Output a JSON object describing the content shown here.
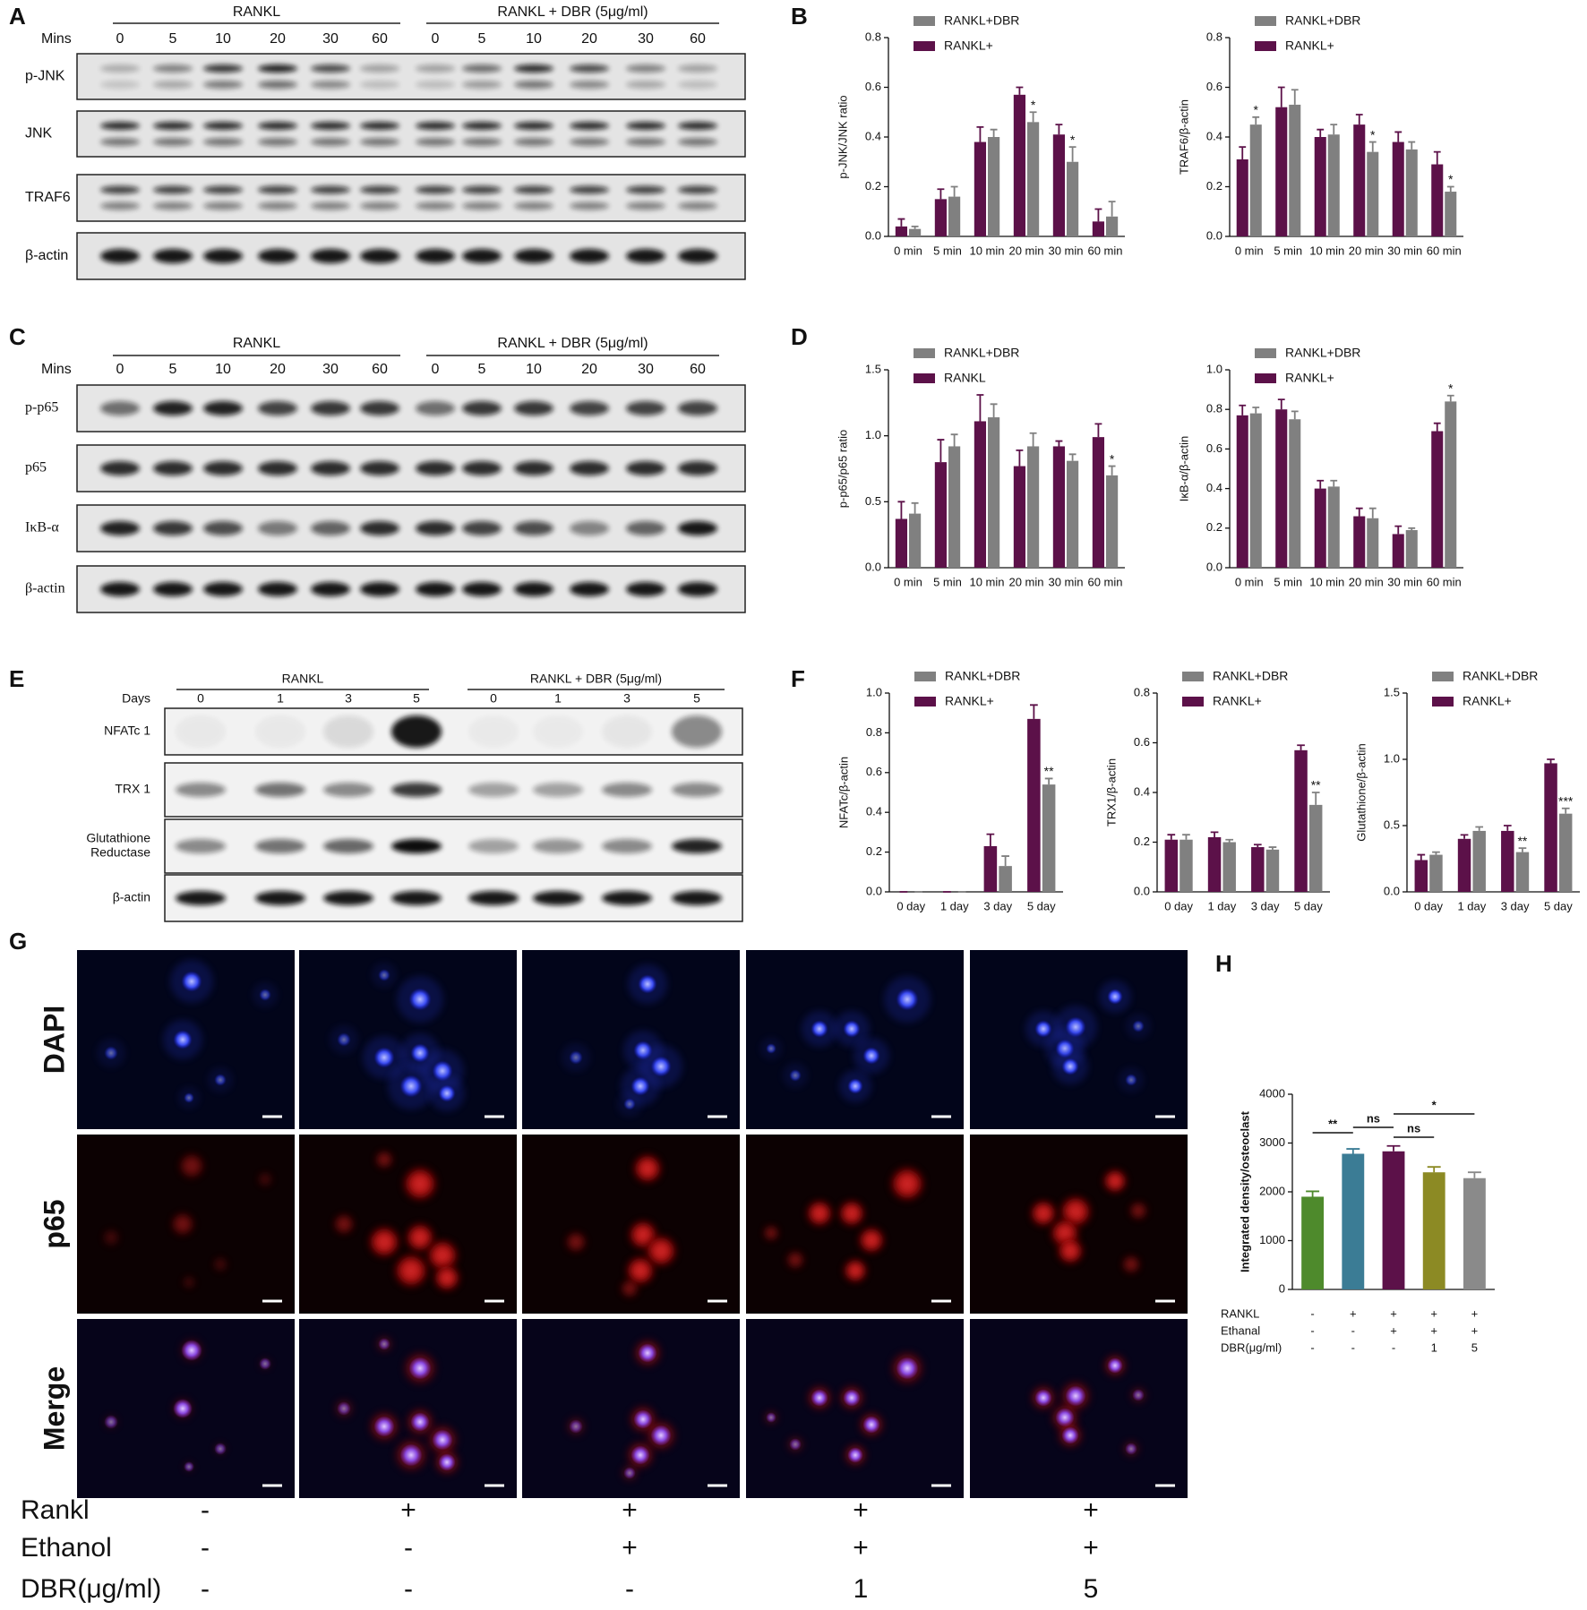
{
  "panels": [
    "A",
    "B",
    "C",
    "D",
    "E",
    "F",
    "G",
    "H"
  ],
  "blots": [
    {
      "groups": [
        "RANKL",
        "RANKL + DBR (5μg/ml)"
      ],
      "lane_title": "Mins",
      "lanes": [
        "0",
        "5",
        "10",
        "20",
        "30",
        "60",
        "0",
        "5",
        "10",
        "20",
        "30",
        "60"
      ],
      "rows": [
        [
          "p-JNK"
        ],
        [
          "JNK"
        ],
        [
          "TRAF6"
        ],
        [
          "β-actin"
        ]
      ]
    },
    {
      "groups": [
        "RANKL",
        "RANKL + DBR (5μg/ml)"
      ],
      "lane_title": "Mins",
      "lanes": [
        "0",
        "5",
        "10",
        "20",
        "30",
        "60",
        "0",
        "5",
        "10",
        "20",
        "30",
        "60"
      ],
      "rows": [
        [
          "p-p65"
        ],
        [
          "p65"
        ],
        [
          "IκB-α"
        ],
        [
          "β-actin"
        ]
      ]
    },
    {
      "groups": [
        "RANKL",
        "RANKL + DBR (5μg/ml)"
      ],
      "lane_title": "Days",
      "lanes": [
        "0",
        "1",
        "3",
        "5",
        "0",
        "1",
        "3",
        "5"
      ],
      "rows": [
        [
          "NFATc 1"
        ],
        [
          "TRX 1"
        ],
        [
          "Glutathione",
          "Reductase"
        ],
        [
          "β-actin"
        ]
      ]
    }
  ],
  "chart_data": [
    {
      "type": "bar",
      "y_label": "p-JNK/JNK ratio",
      "categories": [
        "0 min",
        "5 min",
        "10 min",
        "20 min",
        "30 min",
        "60 min"
      ],
      "series": [
        {
          "name": "RANKL+DBR",
          "color": "#808080",
          "values": [
            0.03,
            0.16,
            0.4,
            0.46,
            0.3,
            0.08
          ],
          "errors": [
            0.01,
            0.04,
            0.03,
            0.04,
            0.06,
            0.06
          ],
          "stars": [
            null,
            null,
            null,
            "*",
            "*",
            null
          ]
        },
        {
          "name": "RANKL+",
          "color": "#5c1149",
          "values": [
            0.04,
            0.15,
            0.38,
            0.57,
            0.41,
            0.06
          ],
          "errors": [
            0.03,
            0.04,
            0.06,
            0.03,
            0.04,
            0.05
          ]
        }
      ],
      "ylim": [
        0,
        0.8
      ],
      "yticks": [
        {
          "value": 0,
          "label": "0.0"
        },
        0.2,
        0.4,
        0.6,
        0.8
      ]
    },
    {
      "type": "bar",
      "y_label": "TRAF6/β-actin",
      "categories": [
        "0 min",
        "5 min",
        "10 min",
        "20 min",
        "30 min",
        "60 min"
      ],
      "series": [
        {
          "name": "RANKL+DBR",
          "color": "#808080",
          "values": [
            0.45,
            0.53,
            0.41,
            0.34,
            0.35,
            0.18
          ],
          "errors": [
            0.03,
            0.06,
            0.04,
            0.04,
            0.03,
            0.02
          ],
          "stars": [
            "*",
            null,
            null,
            "*",
            null,
            "*"
          ]
        },
        {
          "name": "RANKL+",
          "color": "#5c1149",
          "values": [
            0.31,
            0.52,
            0.4,
            0.45,
            0.38,
            0.29
          ],
          "errors": [
            0.05,
            0.08,
            0.03,
            0.04,
            0.04,
            0.05
          ]
        }
      ],
      "ylim": [
        0,
        0.8
      ],
      "yticks": [
        {
          "value": 0,
          "label": "0.0"
        },
        0.2,
        0.4,
        0.6,
        0.8
      ]
    },
    {
      "type": "bar",
      "y_label": "p-p65/p65 ratio",
      "categories": [
        "0 min",
        "5 min",
        "10 min",
        "20 min",
        "30 min",
        "60 min"
      ],
      "series": [
        {
          "name": "RANKL+DBR",
          "color": "#808080",
          "values": [
            0.41,
            0.92,
            1.14,
            0.92,
            0.81,
            0.7
          ],
          "errors": [
            0.08,
            0.09,
            0.1,
            0.1,
            0.05,
            0.07
          ],
          "stars": [
            null,
            null,
            null,
            null,
            null,
            "*"
          ]
        },
        {
          "name": "RANKL",
          "color": "#5c1149",
          "values": [
            0.37,
            0.8,
            1.11,
            0.77,
            0.92,
            0.99
          ],
          "errors": [
            0.13,
            0.17,
            0.2,
            0.12,
            0.04,
            0.1
          ]
        }
      ],
      "ylim": [
        0,
        1.5
      ],
      "yticks": [
        {
          "value": 0,
          "label": "0.0"
        },
        0.5,
        {
          "value": 1,
          "label": "1.0"
        },
        1.5
      ]
    },
    {
      "type": "bar",
      "y_label": "IκB-α/β-actin",
      "categories": [
        "0 min",
        "5 min",
        "10 min",
        "20 min",
        "30 min",
        "60 min"
      ],
      "series": [
        {
          "name": "RANKL+DBR",
          "color": "#808080",
          "values": [
            0.78,
            0.75,
            0.41,
            0.25,
            0.19,
            0.84
          ],
          "errors": [
            0.03,
            0.04,
            0.03,
            0.05,
            0.01,
            0.03
          ],
          "stars": [
            null,
            null,
            null,
            null,
            null,
            "*"
          ]
        },
        {
          "name": "RANKL+",
          "color": "#5c1149",
          "values": [
            0.77,
            0.8,
            0.4,
            0.26,
            0.17,
            0.69
          ],
          "errors": [
            0.05,
            0.05,
            0.04,
            0.04,
            0.04,
            0.04
          ]
        }
      ],
      "ylim": [
        0,
        1
      ],
      "yticks": [
        {
          "value": 0,
          "label": "0.0"
        },
        0.2,
        0.4,
        0.6,
        0.8,
        {
          "value": 1,
          "label": "1.0"
        }
      ]
    },
    {
      "type": "bar",
      "y_label": "NFATc/β-actin",
      "categories": [
        "0 day",
        "1 day",
        "3 day",
        "5 day"
      ],
      "series": [
        {
          "name": "RANKL+DBR",
          "color": "#808080",
          "values": [
            0,
            0,
            0.13,
            0.54
          ],
          "errors": [
            0,
            0,
            0.05,
            0.03
          ],
          "stars": [
            null,
            null,
            null,
            "**"
          ]
        },
        {
          "name": "RANKL+",
          "color": "#5c1149",
          "values": [
            0,
            0,
            0.23,
            0.87
          ],
          "errors": [
            0,
            0,
            0.06,
            0.07
          ]
        }
      ],
      "ylim": [
        0,
        1
      ],
      "yticks": [
        {
          "value": 0,
          "label": "0.0"
        },
        0.2,
        0.4,
        0.6,
        0.8,
        {
          "value": 1,
          "label": "1.0"
        }
      ]
    },
    {
      "type": "bar",
      "y_label": "TRX1/β-actin",
      "categories": [
        "0 day",
        "1 day",
        "3 day",
        "5 day"
      ],
      "series": [
        {
          "name": "RANKL+DBR",
          "color": "#808080",
          "values": [
            0.21,
            0.2,
            0.17,
            0.35
          ],
          "errors": [
            0.02,
            0.01,
            0.01,
            0.05
          ],
          "stars": [
            null,
            null,
            null,
            "**"
          ]
        },
        {
          "name": "RANKL+",
          "color": "#5c1149",
          "values": [
            0.21,
            0.22,
            0.18,
            0.57
          ],
          "errors": [
            0.02,
            0.02,
            0.01,
            0.02
          ]
        }
      ],
      "ylim": [
        0,
        0.8
      ],
      "yticks": [
        {
          "value": 0,
          "label": "0.0"
        },
        0.2,
        0.4,
        0.6,
        0.8
      ]
    },
    {
      "type": "bar",
      "y_label": "Glutathione/β-actin",
      "categories": [
        "0 day",
        "1 day",
        "3 day",
        "5 day"
      ],
      "series": [
        {
          "name": "RANKL+DBR",
          "color": "#808080",
          "values": [
            0.28,
            0.46,
            0.3,
            0.59
          ],
          "errors": [
            0.02,
            0.03,
            0.03,
            0.04
          ],
          "stars": [
            null,
            null,
            "**",
            "***"
          ]
        },
        {
          "name": "RANKL+",
          "color": "#5c1149",
          "values": [
            0.24,
            0.4,
            0.46,
            0.97
          ],
          "errors": [
            0.04,
            0.03,
            0.04,
            0.03
          ]
        }
      ],
      "ylim": [
        0,
        1.5
      ],
      "yticks": [
        {
          "value": 0,
          "label": "0.0"
        },
        0.5,
        {
          "value": 1,
          "label": "1.0"
        },
        1.5
      ]
    },
    {
      "type": "bar",
      "y_label": "Integrated density/osteoclast",
      "categories": [
        null,
        null,
        null,
        null,
        null
      ],
      "values": [
        1900,
        2780,
        2830,
        2400,
        2280
      ],
      "errors": [
        110,
        100,
        110,
        110,
        120
      ],
      "colors": [
        "#4e8a2c",
        "#3b7c95",
        "#5c1149",
        "#8c8a24",
        "#8a8a8a"
      ],
      "ylim": [
        0,
        4000
      ],
      "yticks": [
        0,
        1000,
        2000,
        3000,
        4000
      ],
      "brackets": [
        {
          "from": 0,
          "to": 1,
          "label": "**"
        },
        {
          "from": 1,
          "to": 2,
          "label": "ns"
        },
        {
          "from": 2,
          "to": 3,
          "label": "ns"
        },
        {
          "from": 2,
          "to": 4,
          "label": "*"
        }
      ],
      "conditions": [
        {
          "label": "RANKL",
          "values": [
            "-",
            "+",
            "+",
            "+",
            "+"
          ]
        },
        {
          "label": "Ethanal",
          "values": [
            "-",
            "-",
            "+",
            "+",
            "+"
          ]
        },
        {
          "label": "DBR(μg/ml)",
          "values": [
            "-",
            "-",
            "-",
            "1",
            "5"
          ]
        }
      ]
    }
  ],
  "microscopy": {
    "rows": [
      "DAPI",
      "p65",
      "Merge"
    ],
    "conditions": [
      {
        "label": "Rankl",
        "values": [
          "-",
          "+",
          "+",
          "+",
          "+"
        ]
      },
      {
        "label": "Ethanol",
        "values": [
          "-",
          "-",
          "+",
          "+",
          "+"
        ]
      },
      {
        "label": "DBR(μg/ml)",
        "values": [
          "-",
          "-",
          "-",
          "1",
          "5"
        ]
      }
    ]
  }
}
